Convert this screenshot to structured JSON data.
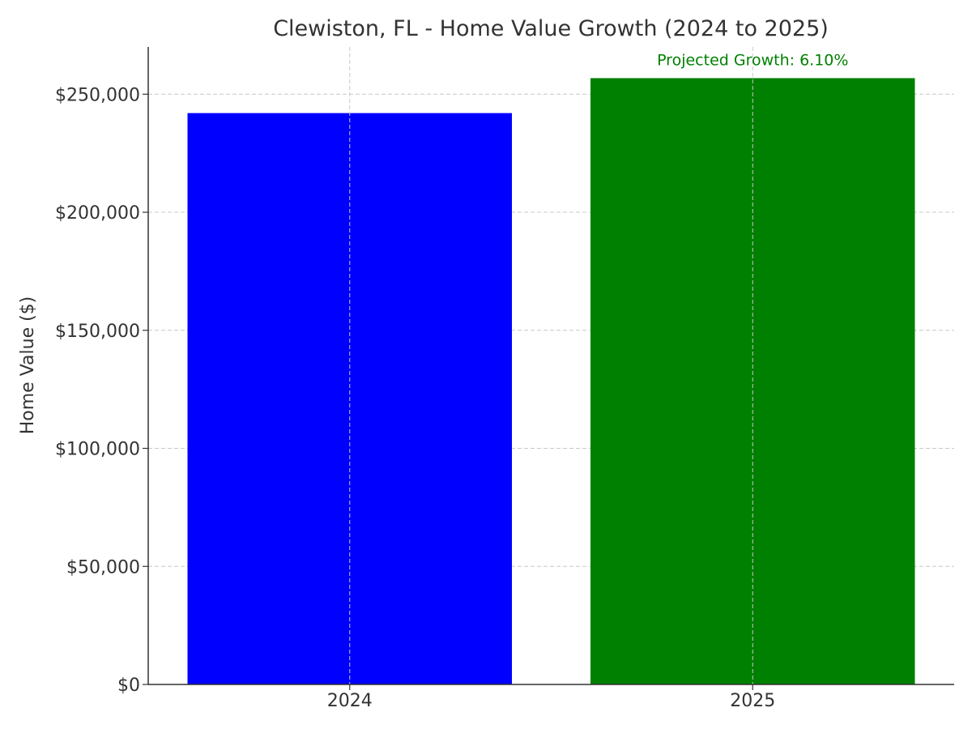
{
  "chart_data": {
    "type": "bar",
    "title": "Clewiston, FL - Home Value Growth (2024 to 2025)",
    "xlabel": "",
    "ylabel": "Home Value ($)",
    "categories": [
      "2024",
      "2025"
    ],
    "values": [
      242000,
      256800
    ],
    "colors": [
      "#0000ff",
      "#008000"
    ],
    "ylim": [
      0,
      270000
    ],
    "yticks": [
      0,
      50000,
      100000,
      150000,
      200000,
      250000
    ],
    "ytick_labels": [
      "$0",
      "$50,000",
      "$100,000",
      "$150,000",
      "$200,000",
      "$250,000"
    ],
    "grid": true,
    "annotation": {
      "text": "Projected Growth: 6.10%",
      "category": "2025",
      "color": "#008000"
    }
  }
}
